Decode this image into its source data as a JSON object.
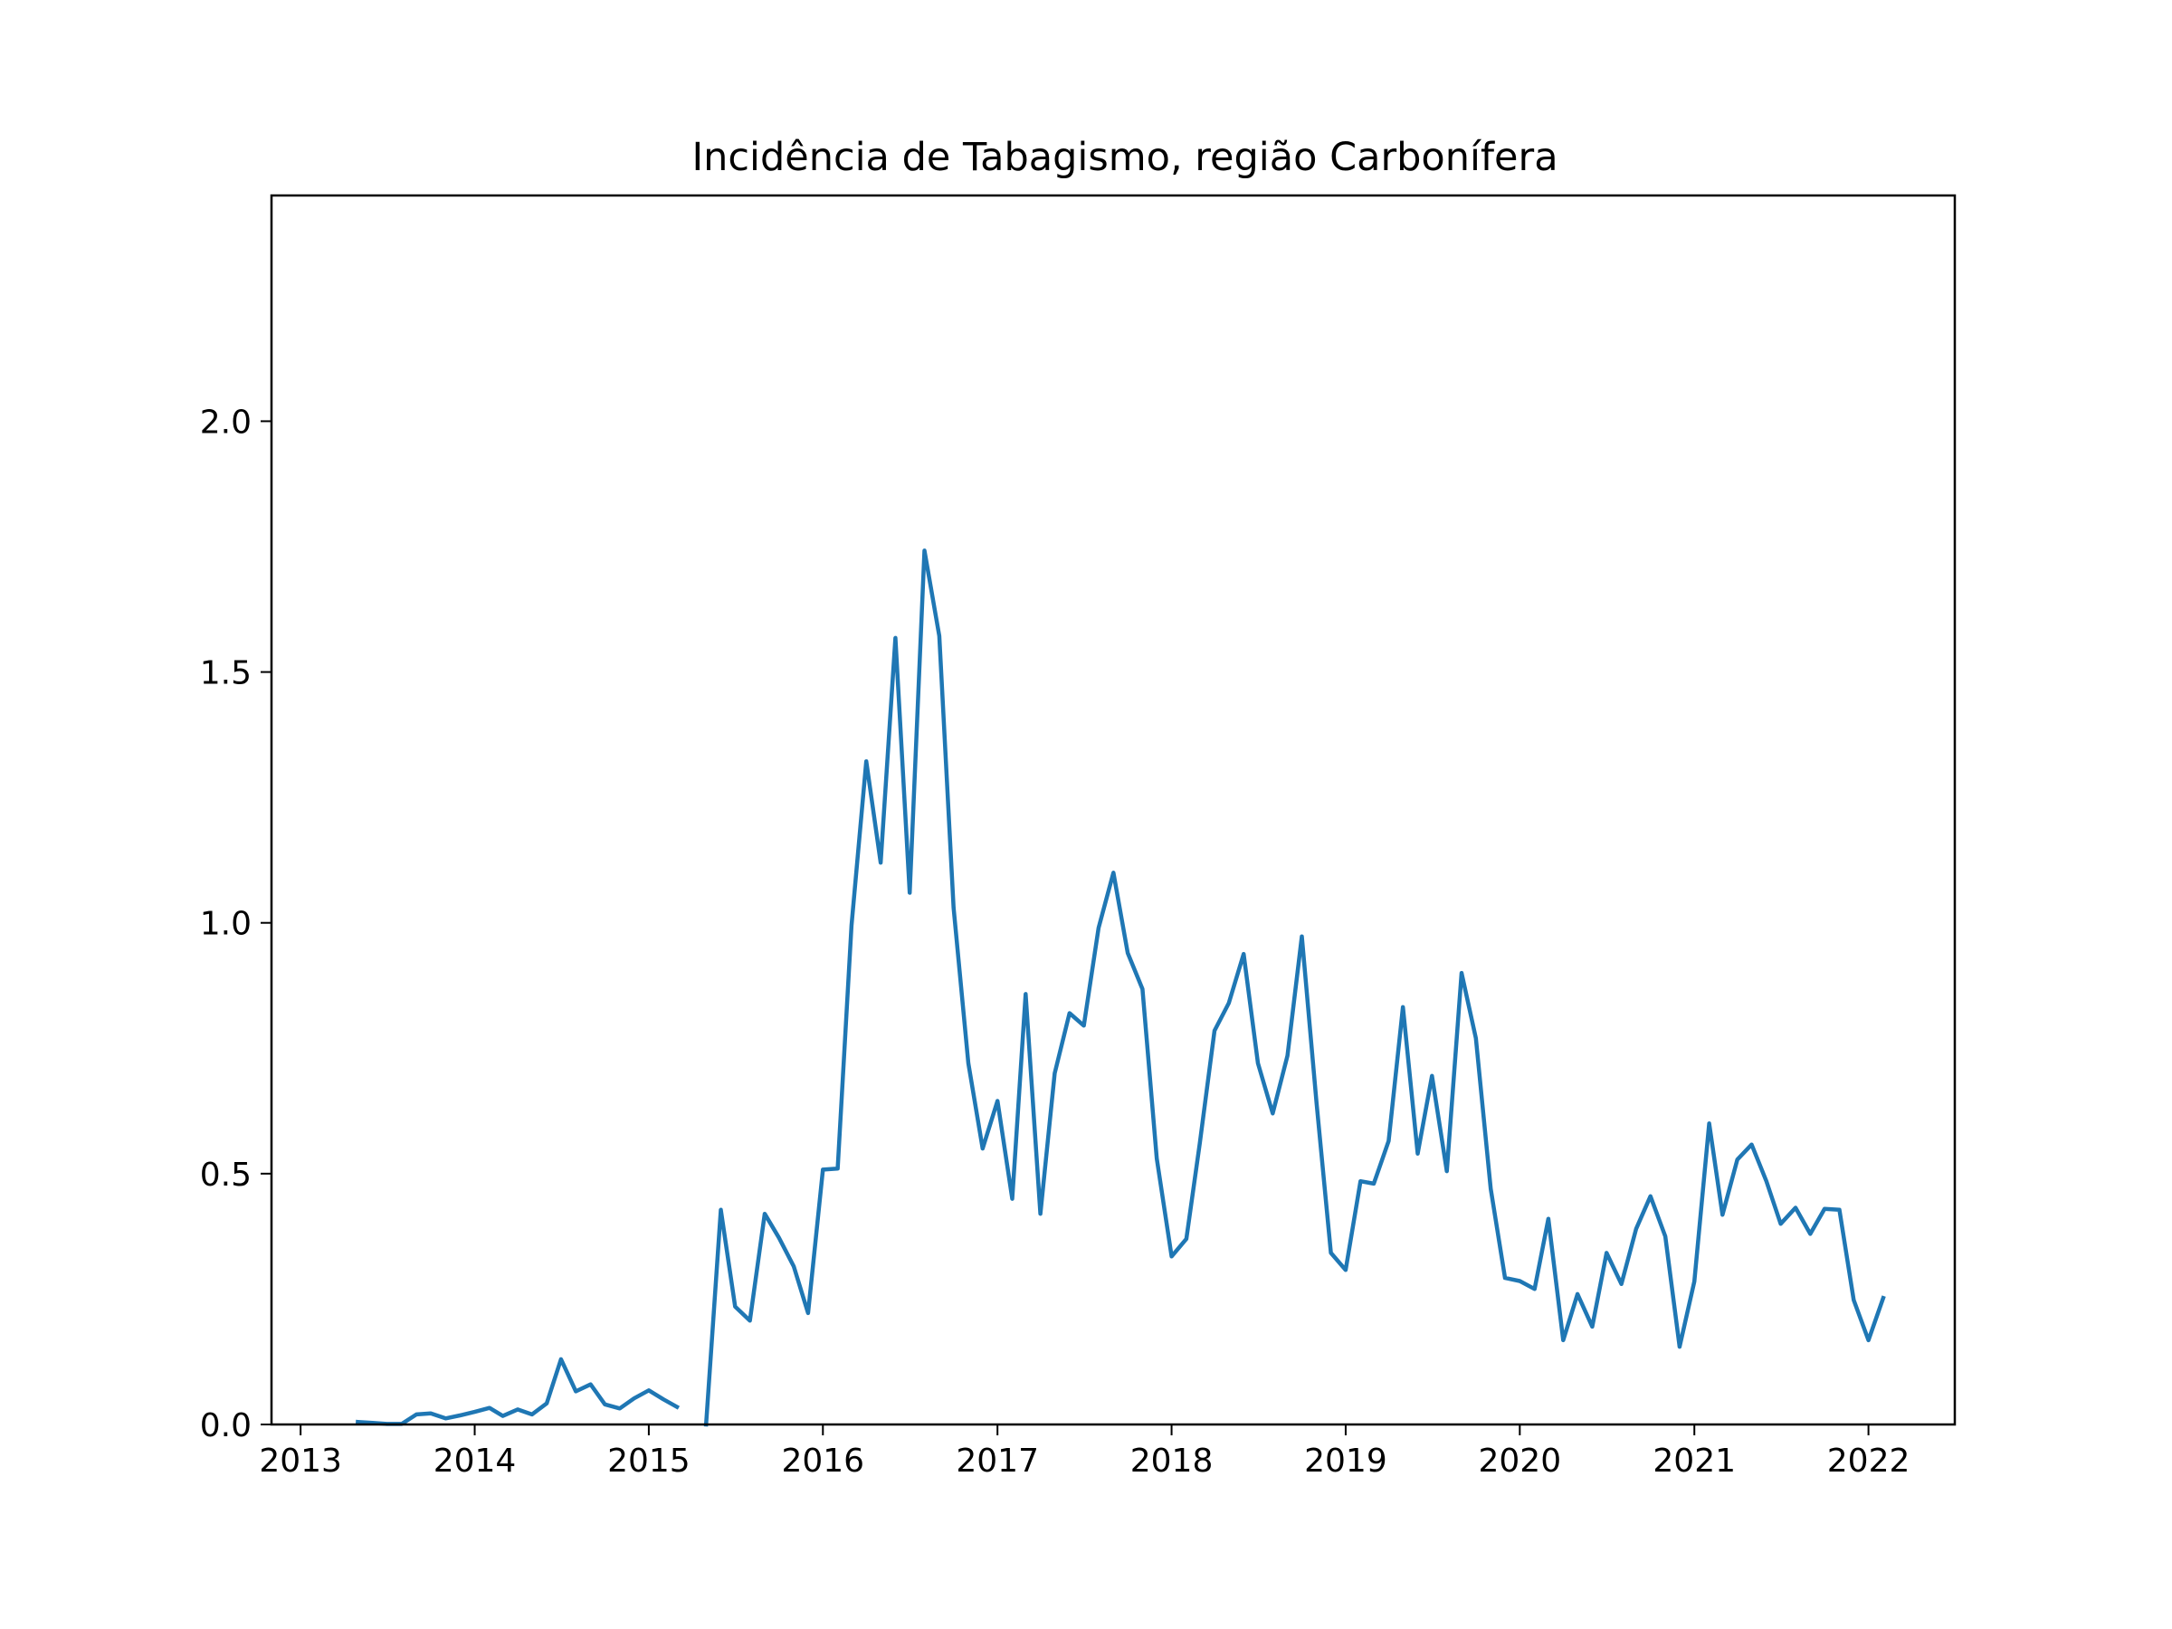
{
  "chart_data": {
    "type": "line",
    "title": "Incidência de Tabagismo, região Carbonífera",
    "xlabel": "",
    "ylabel": "",
    "xlim": [
      "2012-11-01",
      "2022-07-01"
    ],
    "ylim": [
      0,
      2.45
    ],
    "grid": false,
    "legend": "none",
    "line_color": "#1f77b4",
    "x_ticks": [
      {
        "label": "2013",
        "value": "2013-01-01"
      },
      {
        "label": "2014",
        "value": "2014-01-01"
      },
      {
        "label": "2015",
        "value": "2015-01-01"
      },
      {
        "label": "2016",
        "value": "2016-01-01"
      },
      {
        "label": "2017",
        "value": "2017-01-01"
      },
      {
        "label": "2018",
        "value": "2018-01-01"
      },
      {
        "label": "2019",
        "value": "2019-01-01"
      },
      {
        "label": "2020",
        "value": "2020-01-01"
      },
      {
        "label": "2021",
        "value": "2021-01-01"
      },
      {
        "label": "2022",
        "value": "2022-01-01"
      }
    ],
    "y_ticks": [
      {
        "label": "0.0",
        "value": 0.0
      },
      {
        "label": "0.5",
        "value": 0.5
      },
      {
        "label": "1.0",
        "value": 1.0
      },
      {
        "label": "1.5",
        "value": 1.5
      },
      {
        "label": "2.0",
        "value": 2.0
      }
    ],
    "series": [
      {
        "segments": [
          {
            "x": [
              "2013-05",
              "2013-06",
              "2013-07",
              "2013-08",
              "2013-09",
              "2013-10",
              "2013-11",
              "2013-12",
              "2014-01",
              "2014-02",
              "2014-03",
              "2014-04",
              "2014-05",
              "2014-06",
              "2014-07",
              "2014-08",
              "2014-09",
              "2014-10",
              "2014-11",
              "2014-12",
              "2015-01",
              "2015-02",
              "2015-03"
            ],
            "y": [
              0.005,
              0.003,
              0.001,
              0.001,
              0.02,
              0.022,
              0.012,
              0.018,
              0.025,
              0.033,
              0.017,
              0.03,
              0.02,
              0.042,
              0.13,
              0.066,
              0.08,
              0.04,
              0.032,
              0.052,
              0.068,
              0.05,
              0.035
            ]
          },
          {
            "x": [
              "2015-05",
              "2015-06",
              "2015-07",
              "2015-08",
              "2015-09",
              "2015-10",
              "2015-11",
              "2015-12",
              "2016-01",
              "2016-02",
              "2016-03",
              "2016-04",
              "2016-05",
              "2016-06",
              "2016-07",
              "2016-08",
              "2016-09",
              "2016-10",
              "2016-11",
              "2016-12",
              "2017-01",
              "2017-02",
              "2017-03",
              "2017-04",
              "2017-05",
              "2017-06",
              "2017-07",
              "2017-08",
              "2017-09",
              "2017-10",
              "2017-11",
              "2017-12",
              "2018-01",
              "2018-02",
              "2018-03",
              "2018-04",
              "2018-05",
              "2018-06",
              "2018-07",
              "2018-08",
              "2018-09",
              "2018-10",
              "2018-11",
              "2018-12",
              "2019-01",
              "2019-02",
              "2019-03",
              "2019-04",
              "2019-05",
              "2019-06",
              "2019-07",
              "2019-08",
              "2019-09",
              "2019-10",
              "2019-11",
              "2019-12",
              "2020-01",
              "2020-02",
              "2020-03",
              "2020-04",
              "2020-05",
              "2020-06",
              "2020-07",
              "2020-08",
              "2020-09",
              "2020-10",
              "2020-11",
              "2020-12",
              "2021-01",
              "2021-02",
              "2021-03",
              "2021-04",
              "2021-05",
              "2021-06",
              "2021-07",
              "2021-08",
              "2021-09",
              "2021-10",
              "2021-11",
              "2021-12",
              "2022-01",
              "2022-02"
            ],
            "y": [
              0.0,
              0.428,
              0.235,
              0.207,
              0.42,
              0.372,
              0.315,
              0.222,
              0.508,
              0.51,
              0.995,
              1.322,
              1.12,
              1.568,
              1.06,
              1.742,
              1.572,
              1.03,
              0.72,
              0.55,
              0.645,
              0.45,
              0.858,
              0.42,
              0.7,
              0.82,
              0.795,
              0.99,
              1.1,
              0.94,
              0.868,
              0.53,
              0.335,
              0.37,
              0.56,
              0.785,
              0.84,
              0.938,
              0.72,
              0.62,
              0.735,
              0.973,
              0.64,
              0.342,
              0.308,
              0.485,
              0.48,
              0.565,
              0.832,
              0.54,
              0.695,
              0.505,
              0.9,
              0.77,
              0.47,
              0.292,
              0.286,
              0.27,
              0.41,
              0.168,
              0.26,
              0.195,
              0.342,
              0.28,
              0.39,
              0.455,
              0.375,
              0.155,
              0.285,
              0.6,
              0.418,
              0.528,
              0.558,
              0.485,
              0.4,
              0.432,
              0.38,
              0.43,
              0.428,
              0.248,
              0.168,
              0.252
            ]
          }
        ]
      }
    ]
  }
}
